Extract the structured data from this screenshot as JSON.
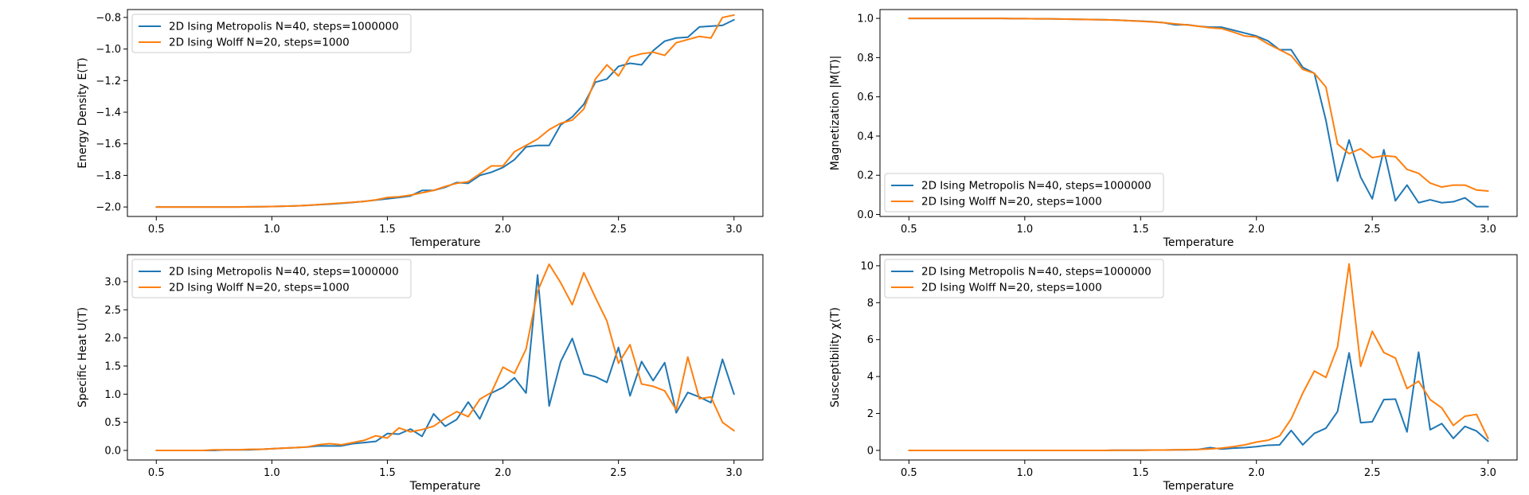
{
  "chart_data": [
    {
      "type": "line",
      "title": "",
      "xlabel": "Temperature",
      "ylabel": "Energy Density E(T)",
      "xlim": [
        0.375,
        3.125
      ],
      "ylim": [
        -2.06,
        -0.75
      ],
      "xticks": [
        0.5,
        1.0,
        1.5,
        2.0,
        2.5,
        3.0
      ],
      "xtick_labels": [
        "0.5",
        "1.0",
        "1.5",
        "2.0",
        "2.5",
        "3.0"
      ],
      "yticks": [
        -2.0,
        -1.8,
        -1.6,
        -1.4,
        -1.2,
        -1.0,
        -0.8
      ],
      "ytick_labels": [
        "−2.0",
        "−1.8",
        "−1.6",
        "−1.4",
        "−1.2",
        "−1.0",
        "−0.8"
      ],
      "legend_position": "upper-left",
      "grid": false,
      "series": [
        {
          "name": "2D Ising Metropolis N=40, steps=1000000",
          "color": "#1f77b4",
          "x": [
            0.5,
            0.55,
            0.6,
            0.65,
            0.7,
            0.75,
            0.8,
            0.85,
            0.9,
            0.95,
            1.0,
            1.05,
            1.1,
            1.15,
            1.2,
            1.25,
            1.3,
            1.35,
            1.4,
            1.45,
            1.5,
            1.55,
            1.6,
            1.65,
            1.7,
            1.75,
            1.8,
            1.85,
            1.9,
            1.95,
            2.0,
            2.05,
            2.1,
            2.15,
            2.2,
            2.25,
            2.3,
            2.35,
            2.4,
            2.45,
            2.5,
            2.55,
            2.6,
            2.65,
            2.7,
            2.75,
            2.8,
            2.85,
            2.9,
            2.95,
            3.0
          ],
          "y": [
            -2.0,
            -2.0,
            -2.0,
            -2.0,
            -2.0,
            -2.0,
            -2.0,
            -2.0,
            -1.999,
            -1.998,
            -1.997,
            -1.995,
            -1.993,
            -1.99,
            -1.986,
            -1.982,
            -1.977,
            -1.971,
            -1.964,
            -1.956,
            -1.948,
            -1.94,
            -1.93,
            -1.895,
            -1.895,
            -1.875,
            -1.845,
            -1.85,
            -1.8,
            -1.78,
            -1.75,
            -1.7,
            -1.62,
            -1.61,
            -1.61,
            -1.48,
            -1.43,
            -1.35,
            -1.21,
            -1.19,
            -1.11,
            -1.09,
            -1.1,
            -1.01,
            -0.95,
            -0.93,
            -0.925,
            -0.86,
            -0.855,
            -0.85,
            -0.815
          ]
        },
        {
          "name": "2D Ising Wolff N=20, steps=1000",
          "color": "#ff7f0e",
          "x": [
            0.5,
            0.55,
            0.6,
            0.65,
            0.7,
            0.75,
            0.8,
            0.85,
            0.9,
            0.95,
            1.0,
            1.05,
            1.1,
            1.15,
            1.2,
            1.25,
            1.3,
            1.35,
            1.4,
            1.45,
            1.5,
            1.55,
            1.6,
            1.65,
            1.7,
            1.75,
            1.8,
            1.85,
            1.9,
            1.95,
            2.0,
            2.05,
            2.1,
            2.15,
            2.2,
            2.25,
            2.3,
            2.35,
            2.4,
            2.45,
            2.5,
            2.55,
            2.6,
            2.65,
            2.7,
            2.75,
            2.8,
            2.85,
            2.9,
            2.95,
            3.0
          ],
          "y": [
            -2.0,
            -2.0,
            -2.0,
            -2.0,
            -2.0,
            -2.0,
            -2.0,
            -2.0,
            -1.999,
            -1.998,
            -1.997,
            -1.995,
            -1.993,
            -1.99,
            -1.985,
            -1.98,
            -1.975,
            -1.97,
            -1.965,
            -1.955,
            -1.94,
            -1.935,
            -1.925,
            -1.91,
            -1.895,
            -1.87,
            -1.85,
            -1.84,
            -1.79,
            -1.74,
            -1.74,
            -1.65,
            -1.61,
            -1.57,
            -1.51,
            -1.47,
            -1.45,
            -1.38,
            -1.19,
            -1.1,
            -1.17,
            -1.05,
            -1.03,
            -1.02,
            -1.04,
            -0.96,
            -0.94,
            -0.92,
            -0.93,
            -0.8,
            -0.785
          ]
        }
      ]
    },
    {
      "type": "line",
      "title": "",
      "xlabel": "Temperature",
      "ylabel": "Magnetization |M(T)|",
      "xlim": [
        0.375,
        3.125
      ],
      "ylim": [
        -0.01,
        1.045
      ],
      "xticks": [
        0.5,
        1.0,
        1.5,
        2.0,
        2.5,
        3.0
      ],
      "xtick_labels": [
        "0.5",
        "1.0",
        "1.5",
        "2.0",
        "2.5",
        "3.0"
      ],
      "yticks": [
        0.0,
        0.2,
        0.4,
        0.6,
        0.8,
        1.0
      ],
      "ytick_labels": [
        "0.0",
        "0.2",
        "0.4",
        "0.6",
        "0.8",
        "1.0"
      ],
      "legend_position": "lower-left",
      "grid": false,
      "series": [
        {
          "name": "2D Ising Metropolis N=40, steps=1000000",
          "color": "#1f77b4",
          "x": [
            0.5,
            0.55,
            0.6,
            0.65,
            0.7,
            0.75,
            0.8,
            0.85,
            0.9,
            0.95,
            1.0,
            1.05,
            1.1,
            1.15,
            1.2,
            1.25,
            1.3,
            1.35,
            1.4,
            1.45,
            1.5,
            1.55,
            1.6,
            1.65,
            1.7,
            1.75,
            1.8,
            1.85,
            1.9,
            1.95,
            2.0,
            2.05,
            2.1,
            2.15,
            2.2,
            2.25,
            2.3,
            2.35,
            2.4,
            2.45,
            2.5,
            2.55,
            2.6,
            2.65,
            2.7,
            2.75,
            2.8,
            2.85,
            2.9,
            2.95,
            3.0
          ],
          "y": [
            1.0,
            1.0,
            1.0,
            1.0,
            1.0,
            1.0,
            1.0,
            1.0,
            1.0,
            0.999,
            0.999,
            0.998,
            0.998,
            0.997,
            0.996,
            0.995,
            0.994,
            0.993,
            0.991,
            0.988,
            0.986,
            0.983,
            0.978,
            0.967,
            0.968,
            0.96,
            0.955,
            0.955,
            0.94,
            0.925,
            0.91,
            0.885,
            0.84,
            0.84,
            0.75,
            0.72,
            0.48,
            0.17,
            0.38,
            0.19,
            0.08,
            0.33,
            0.07,
            0.15,
            0.06,
            0.075,
            0.06,
            0.065,
            0.085,
            0.04,
            0.04
          ]
        },
        {
          "name": "2D Ising Wolff N=20, steps=1000",
          "color": "#ff7f0e",
          "x": [
            0.5,
            0.55,
            0.6,
            0.65,
            0.7,
            0.75,
            0.8,
            0.85,
            0.9,
            0.95,
            1.0,
            1.05,
            1.1,
            1.15,
            1.2,
            1.25,
            1.3,
            1.35,
            1.4,
            1.45,
            1.5,
            1.55,
            1.6,
            1.65,
            1.7,
            1.75,
            1.8,
            1.85,
            1.9,
            1.95,
            2.0,
            2.05,
            2.1,
            2.15,
            2.2,
            2.25,
            2.3,
            2.35,
            2.4,
            2.45,
            2.5,
            2.55,
            2.6,
            2.65,
            2.7,
            2.75,
            2.8,
            2.85,
            2.9,
            2.95,
            3.0
          ],
          "y": [
            1.0,
            1.0,
            1.0,
            1.0,
            1.0,
            1.0,
            1.0,
            1.0,
            1.0,
            0.999,
            0.999,
            0.998,
            0.998,
            0.997,
            0.996,
            0.995,
            0.994,
            0.993,
            0.991,
            0.988,
            0.985,
            0.982,
            0.978,
            0.972,
            0.967,
            0.96,
            0.952,
            0.948,
            0.93,
            0.91,
            0.905,
            0.87,
            0.84,
            0.81,
            0.74,
            0.72,
            0.65,
            0.36,
            0.31,
            0.335,
            0.29,
            0.3,
            0.295,
            0.23,
            0.21,
            0.16,
            0.14,
            0.15,
            0.15,
            0.125,
            0.12
          ]
        }
      ]
    },
    {
      "type": "line",
      "title": "",
      "xlabel": "Temperature",
      "ylabel": "Specific Heat U(T)",
      "xlim": [
        0.375,
        3.125
      ],
      "ylim": [
        -0.17,
        3.48
      ],
      "xticks": [
        0.5,
        1.0,
        1.5,
        2.0,
        2.5,
        3.0
      ],
      "xtick_labels": [
        "0.5",
        "1.0",
        "1.5",
        "2.0",
        "2.5",
        "3.0"
      ],
      "yticks": [
        0.0,
        0.5,
        1.0,
        1.5,
        2.0,
        2.5,
        3.0
      ],
      "ytick_labels": [
        "0.0",
        "0.5",
        "1.0",
        "1.5",
        "2.0",
        "2.5",
        "3.0"
      ],
      "legend_position": "upper-left",
      "grid": false,
      "series": [
        {
          "name": "2D Ising Metropolis N=40, steps=1000000",
          "color": "#1f77b4",
          "x": [
            0.5,
            0.55,
            0.6,
            0.65,
            0.7,
            0.75,
            0.8,
            0.85,
            0.9,
            0.95,
            1.0,
            1.05,
            1.1,
            1.15,
            1.2,
            1.25,
            1.3,
            1.35,
            1.4,
            1.45,
            1.5,
            1.55,
            1.6,
            1.65,
            1.7,
            1.75,
            1.8,
            1.85,
            1.9,
            1.95,
            2.0,
            2.05,
            2.1,
            2.15,
            2.2,
            2.25,
            2.3,
            2.35,
            2.4,
            2.45,
            2.5,
            2.55,
            2.6,
            2.65,
            2.7,
            2.75,
            2.8,
            2.85,
            2.9,
            2.95,
            3.0
          ],
          "y": [
            0.0,
            0.0,
            0.0,
            0.0,
            0.0,
            0.0,
            0.01,
            0.01,
            0.01,
            0.02,
            0.03,
            0.04,
            0.05,
            0.06,
            0.08,
            0.08,
            0.08,
            0.12,
            0.14,
            0.16,
            0.3,
            0.29,
            0.38,
            0.25,
            0.65,
            0.43,
            0.55,
            0.86,
            0.56,
            1.02,
            1.12,
            1.29,
            1.02,
            3.12,
            0.79,
            1.58,
            1.99,
            1.36,
            1.31,
            1.21,
            1.83,
            0.97,
            1.58,
            1.24,
            1.56,
            0.67,
            1.03,
            0.95,
            0.85,
            1.62,
            1.0
          ]
        },
        {
          "name": "2D Ising Wolff N=20, steps=1000",
          "color": "#ff7f0e",
          "x": [
            0.5,
            0.55,
            0.6,
            0.65,
            0.7,
            0.75,
            0.8,
            0.85,
            0.9,
            0.95,
            1.0,
            1.05,
            1.1,
            1.15,
            1.2,
            1.25,
            1.3,
            1.35,
            1.4,
            1.45,
            1.5,
            1.55,
            1.6,
            1.65,
            1.7,
            1.75,
            1.8,
            1.85,
            1.9,
            1.95,
            2.0,
            2.05,
            2.1,
            2.15,
            2.2,
            2.25,
            2.3,
            2.35,
            2.4,
            2.45,
            2.5,
            2.55,
            2.6,
            2.65,
            2.7,
            2.75,
            2.8,
            2.85,
            2.9,
            2.95,
            3.0
          ],
          "y": [
            0.0,
            0.0,
            0.0,
            0.0,
            0.0,
            0.01,
            0.01,
            0.01,
            0.02,
            0.02,
            0.03,
            0.04,
            0.05,
            0.06,
            0.1,
            0.12,
            0.1,
            0.14,
            0.18,
            0.26,
            0.22,
            0.4,
            0.33,
            0.37,
            0.43,
            0.57,
            0.69,
            0.6,
            0.91,
            1.03,
            1.48,
            1.37,
            1.8,
            2.83,
            3.31,
            2.98,
            2.59,
            3.16,
            2.72,
            2.3,
            1.55,
            1.88,
            1.18,
            1.14,
            1.06,
            0.72,
            1.66,
            0.92,
            0.95,
            0.5,
            0.35
          ]
        }
      ]
    },
    {
      "type": "line",
      "title": "",
      "xlabel": "Temperature",
      "ylabel": "Susceptibility χ(T)",
      "xlim": [
        0.375,
        3.125
      ],
      "ylim": [
        -0.52,
        10.6
      ],
      "xticks": [
        0.5,
        1.0,
        1.5,
        2.0,
        2.5,
        3.0
      ],
      "xtick_labels": [
        "0.5",
        "1.0",
        "1.5",
        "2.0",
        "2.5",
        "3.0"
      ],
      "yticks": [
        0,
        2,
        4,
        6,
        8,
        10
      ],
      "ytick_labels": [
        "0",
        "2",
        "4",
        "6",
        "8",
        "10"
      ],
      "legend_position": "upper-left",
      "grid": false,
      "series": [
        {
          "name": "2D Ising Metropolis N=40, steps=1000000",
          "color": "#1f77b4",
          "x": [
            0.5,
            0.55,
            0.6,
            0.65,
            0.7,
            0.75,
            0.8,
            0.85,
            0.9,
            0.95,
            1.0,
            1.05,
            1.1,
            1.15,
            1.2,
            1.25,
            1.3,
            1.35,
            1.4,
            1.45,
            1.5,
            1.55,
            1.6,
            1.65,
            1.7,
            1.75,
            1.8,
            1.85,
            1.9,
            1.95,
            2.0,
            2.05,
            2.1,
            2.15,
            2.2,
            2.25,
            2.3,
            2.35,
            2.4,
            2.45,
            2.5,
            2.55,
            2.6,
            2.65,
            2.7,
            2.75,
            2.8,
            2.85,
            2.9,
            2.95,
            3.0
          ],
          "y": [
            0,
            0,
            0,
            0,
            0,
            0,
            0,
            0,
            0,
            0,
            0,
            0,
            0,
            0,
            0,
            0,
            0,
            0,
            0.01,
            0.01,
            0.01,
            0.02,
            0.02,
            0.03,
            0.03,
            0.05,
            0.15,
            0.07,
            0.12,
            0.15,
            0.2,
            0.28,
            0.3,
            1.08,
            0.3,
            0.92,
            1.2,
            2.1,
            5.28,
            1.5,
            1.55,
            2.75,
            2.78,
            1.0,
            5.32,
            1.12,
            1.45,
            0.65,
            1.3,
            1.05,
            0.5
          ]
        },
        {
          "name": "2D Ising Wolff N=20, steps=1000",
          "color": "#ff7f0e",
          "x": [
            0.5,
            0.55,
            0.6,
            0.65,
            0.7,
            0.75,
            0.8,
            0.85,
            0.9,
            0.95,
            1.0,
            1.05,
            1.1,
            1.15,
            1.2,
            1.25,
            1.3,
            1.35,
            1.4,
            1.45,
            1.5,
            1.55,
            1.6,
            1.65,
            1.7,
            1.75,
            1.8,
            1.85,
            1.9,
            1.95,
            2.0,
            2.05,
            2.1,
            2.15,
            2.2,
            2.25,
            2.3,
            2.35,
            2.4,
            2.45,
            2.5,
            2.55,
            2.6,
            2.65,
            2.7,
            2.75,
            2.8,
            2.85,
            2.9,
            2.95,
            3.0
          ],
          "y": [
            0,
            0,
            0,
            0,
            0,
            0,
            0,
            0,
            0,
            0,
            0,
            0,
            0,
            0,
            0,
            0,
            0,
            0,
            0.01,
            0.01,
            0.01,
            0.02,
            0.02,
            0.03,
            0.04,
            0.05,
            0.08,
            0.12,
            0.2,
            0.3,
            0.45,
            0.55,
            0.78,
            1.7,
            3.1,
            4.3,
            3.95,
            5.6,
            10.1,
            4.55,
            6.45,
            5.3,
            5.0,
            3.35,
            3.75,
            2.75,
            2.3,
            1.35,
            1.85,
            1.95,
            0.65
          ]
        }
      ]
    }
  ]
}
